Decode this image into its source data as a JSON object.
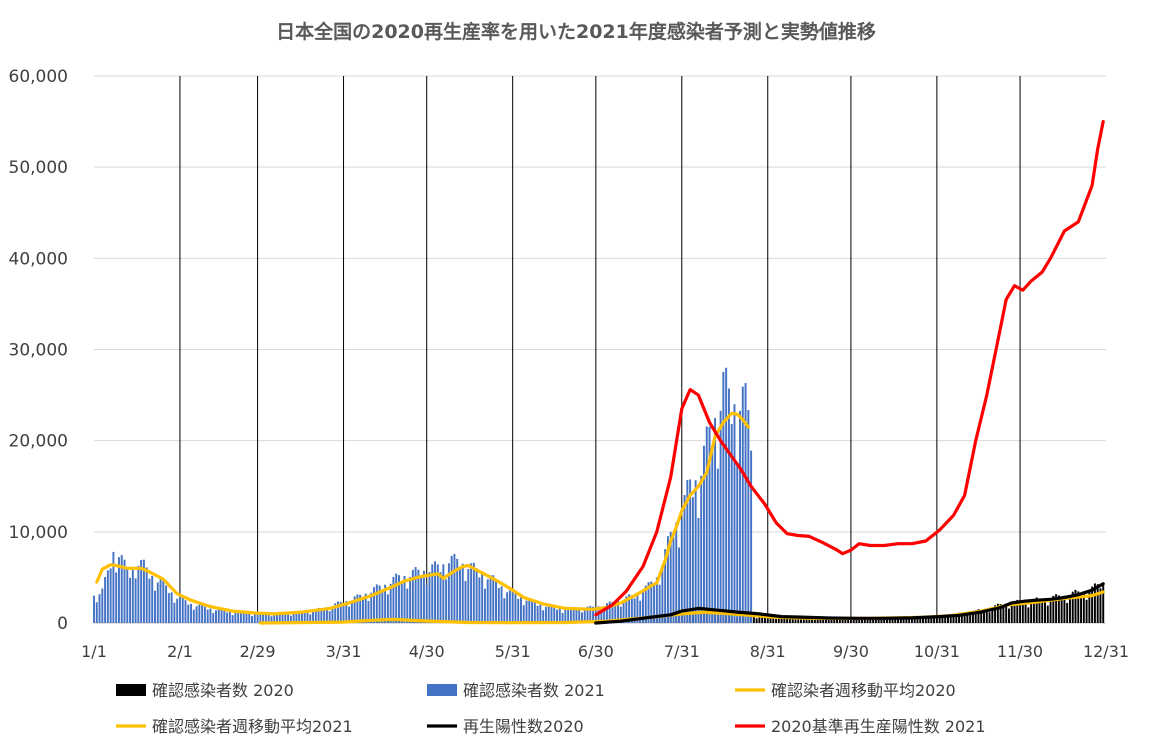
{
  "chart_data": {
    "type": "bar",
    "title": "日本全国の2020再生産率を用いた2021年度感染者予測と実勢値推移",
    "xlabel": "",
    "ylabel": "",
    "ylim": [
      0,
      60000
    ],
    "y_ticks": [
      0,
      10000,
      20000,
      30000,
      40000,
      50000,
      60000
    ],
    "y_tick_labels": [
      "0",
      "10,000",
      "20,000",
      "30,000",
      "40,000",
      "50,000",
      "60,000"
    ],
    "x_range_days": [
      0,
      364
    ],
    "x_ticks": [
      {
        "label": "1/1",
        "day": 0
      },
      {
        "label": "2/1",
        "day": 31
      },
      {
        "label": "2/29",
        "day": 59
      },
      {
        "label": "3/31",
        "day": 90
      },
      {
        "label": "4/30",
        "day": 120
      },
      {
        "label": "5/31",
        "day": 151
      },
      {
        "label": "6/30",
        "day": 181
      },
      {
        "label": "7/31",
        "day": 212
      },
      {
        "label": "8/31",
        "day": 243
      },
      {
        "label": "9/30",
        "day": 273
      },
      {
        "label": "10/31",
        "day": 304
      },
      {
        "label": "11/30",
        "day": 334
      },
      {
        "label": "12/31",
        "day": 365
      }
    ],
    "grid": {
      "vertical": true,
      "horizontal": true
    },
    "legend_position": "bottom",
    "series": [
      {
        "name": "確認感染者数 2020",
        "kind": "bar",
        "color": "#000000",
        "points": [
          [
            60,
            0
          ],
          [
            70,
            20
          ],
          [
            80,
            50
          ],
          [
            90,
            150
          ],
          [
            100,
            350
          ],
          [
            105,
            450
          ],
          [
            110,
            400
          ],
          [
            120,
            250
          ],
          [
            130,
            120
          ],
          [
            140,
            50
          ],
          [
            150,
            30
          ],
          [
            160,
            40
          ],
          [
            170,
            60
          ],
          [
            180,
            150
          ],
          [
            190,
            300
          ],
          [
            200,
            600
          ],
          [
            210,
            900
          ],
          [
            215,
            1200
          ],
          [
            220,
            1300
          ],
          [
            225,
            1200
          ],
          [
            230,
            1000
          ],
          [
            240,
            700
          ],
          [
            250,
            550
          ],
          [
            260,
            480
          ],
          [
            270,
            500
          ],
          [
            280,
            520
          ],
          [
            290,
            560
          ],
          [
            300,
            650
          ],
          [
            310,
            900
          ],
          [
            320,
            1400
          ],
          [
            330,
            2200
          ],
          [
            335,
            2300
          ],
          [
            340,
            2500
          ],
          [
            345,
            2700
          ],
          [
            350,
            3000
          ],
          [
            355,
            3300
          ],
          [
            360,
            3700
          ],
          [
            364,
            4400
          ]
        ]
      },
      {
        "name": "確認感染者数 2021",
        "kind": "bar",
        "color": "#4472C4",
        "points": [
          [
            0,
            3000
          ],
          [
            3,
            3500
          ],
          [
            5,
            5500
          ],
          [
            7,
            7800
          ],
          [
            9,
            7600
          ],
          [
            11,
            6200
          ],
          [
            13,
            5500
          ],
          [
            15,
            6800
          ],
          [
            18,
            6200
          ],
          [
            20,
            5400
          ],
          [
            25,
            4200
          ],
          [
            30,
            2800
          ],
          [
            35,
            2100
          ],
          [
            40,
            1700
          ],
          [
            45,
            1400
          ],
          [
            50,
            1200
          ],
          [
            55,
            1100
          ],
          [
            60,
            1000
          ],
          [
            65,
            1050
          ],
          [
            70,
            1100
          ],
          [
            75,
            1200
          ],
          [
            80,
            1400
          ],
          [
            85,
            1800
          ],
          [
            90,
            2300
          ],
          [
            95,
            2800
          ],
          [
            100,
            3500
          ],
          [
            105,
            4200
          ],
          [
            110,
            5000
          ],
          [
            115,
            5400
          ],
          [
            120,
            5800
          ],
          [
            125,
            6200
          ],
          [
            128,
            6900
          ],
          [
            131,
            6700
          ],
          [
            134,
            6400
          ],
          [
            137,
            5900
          ],
          [
            140,
            5400
          ],
          [
            145,
            4500
          ],
          [
            150,
            3300
          ],
          [
            155,
            2700
          ],
          [
            160,
            2100
          ],
          [
            165,
            1700
          ],
          [
            170,
            1500
          ],
          [
            175,
            1600
          ],
          [
            180,
            1700
          ],
          [
            185,
            2000
          ],
          [
            190,
            2500
          ],
          [
            195,
            3000
          ],
          [
            200,
            4000
          ],
          [
            203,
            5000
          ],
          [
            206,
            7500
          ],
          [
            209,
            10500
          ],
          [
            212,
            12000
          ],
          [
            215,
            15000
          ],
          [
            218,
            16000
          ],
          [
            220,
            18000
          ],
          [
            222,
            20500
          ],
          [
            225,
            23500
          ],
          [
            227,
            25500
          ],
          [
            229,
            24500
          ],
          [
            231,
            24000
          ],
          [
            233,
            24500
          ],
          [
            235,
            23500
          ],
          [
            237,
            21000
          ],
          [
            238,
            0
          ]
        ]
      },
      {
        "name": "確認染者週移動平均2020",
        "kind": "line",
        "color": "#FFC000",
        "points": [
          [
            60,
            0
          ],
          [
            90,
            100
          ],
          [
            100,
            300
          ],
          [
            108,
            400
          ],
          [
            120,
            220
          ],
          [
            135,
            60
          ],
          [
            150,
            30
          ],
          [
            170,
            60
          ],
          [
            185,
            200
          ],
          [
            200,
            600
          ],
          [
            212,
            1000
          ],
          [
            220,
            1200
          ],
          [
            230,
            1000
          ],
          [
            245,
            650
          ],
          [
            260,
            500
          ],
          [
            280,
            520
          ],
          [
            300,
            640
          ],
          [
            310,
            850
          ],
          [
            320,
            1300
          ],
          [
            330,
            2000
          ],
          [
            340,
            2300
          ],
          [
            350,
            2700
          ],
          [
            360,
            3000
          ],
          [
            364,
            3400
          ]
        ]
      },
      {
        "name": "確認感染者週移動平均2021",
        "kind": "line",
        "color": "#FFC000",
        "points": [
          [
            1,
            4500
          ],
          [
            3,
            5900
          ],
          [
            6,
            6400
          ],
          [
            8,
            6300
          ],
          [
            12,
            6000
          ],
          [
            17,
            6000
          ],
          [
            20,
            5600
          ],
          [
            25,
            4800
          ],
          [
            30,
            3200
          ],
          [
            35,
            2500
          ],
          [
            42,
            1800
          ],
          [
            50,
            1300
          ],
          [
            58,
            1100
          ],
          [
            65,
            1000
          ],
          [
            75,
            1200
          ],
          [
            85,
            1600
          ],
          [
            92,
            2200
          ],
          [
            100,
            3000
          ],
          [
            107,
            3900
          ],
          [
            112,
            4600
          ],
          [
            118,
            5100
          ],
          [
            124,
            5400
          ],
          [
            126,
            4900
          ],
          [
            130,
            5700
          ],
          [
            133,
            6200
          ],
          [
            135,
            6300
          ],
          [
            140,
            5500
          ],
          [
            145,
            4700
          ],
          [
            150,
            3800
          ],
          [
            155,
            2800
          ],
          [
            162,
            2100
          ],
          [
            170,
            1600
          ],
          [
            180,
            1500
          ],
          [
            185,
            1700
          ],
          [
            190,
            2200
          ],
          [
            195,
            3000
          ],
          [
            199,
            3700
          ],
          [
            201,
            4100
          ],
          [
            203,
            4400
          ],
          [
            206,
            6900
          ],
          [
            208,
            9000
          ],
          [
            210,
            10500
          ],
          [
            212,
            12300
          ],
          [
            215,
            14000
          ],
          [
            218,
            15000
          ],
          [
            221,
            16500
          ],
          [
            224,
            20500
          ],
          [
            227,
            22000
          ],
          [
            230,
            23000
          ],
          [
            232,
            22900
          ],
          [
            234,
            22300
          ],
          [
            236,
            21500
          ]
        ]
      },
      {
        "name": "再生陽性数2020",
        "kind": "line",
        "color": "#000000",
        "points": [
          [
            181,
            0
          ],
          [
            190,
            200
          ],
          [
            200,
            600
          ],
          [
            208,
            900
          ],
          [
            212,
            1300
          ],
          [
            218,
            1600
          ],
          [
            225,
            1400
          ],
          [
            232,
            1200
          ],
          [
            240,
            1000
          ],
          [
            248,
            700
          ],
          [
            255,
            650
          ],
          [
            265,
            550
          ],
          [
            275,
            520
          ],
          [
            285,
            520
          ],
          [
            295,
            560
          ],
          [
            305,
            700
          ],
          [
            312,
            850
          ],
          [
            320,
            1200
          ],
          [
            327,
            1700
          ],
          [
            331,
            2200
          ],
          [
            336,
            2400
          ],
          [
            340,
            2500
          ],
          [
            345,
            2600
          ],
          [
            350,
            2800
          ],
          [
            355,
            3100
          ],
          [
            360,
            3600
          ],
          [
            364,
            4300
          ]
        ]
      },
      {
        "name": "2020基準再生産陽性数 2021",
        "kind": "line",
        "color": "#FF0000",
        "points": [
          [
            181,
            900
          ],
          [
            187,
            2000
          ],
          [
            192,
            3500
          ],
          [
            198,
            6200
          ],
          [
            203,
            10000
          ],
          [
            208,
            16000
          ],
          [
            212,
            23500
          ],
          [
            215,
            25600
          ],
          [
            218,
            25000
          ],
          [
            222,
            22000
          ],
          [
            226,
            20000
          ],
          [
            229,
            18700
          ],
          [
            233,
            17000
          ],
          [
            237,
            15000
          ],
          [
            242,
            13000
          ],
          [
            246,
            11000
          ],
          [
            250,
            9800
          ],
          [
            254,
            9600
          ],
          [
            258,
            9500
          ],
          [
            263,
            8800
          ],
          [
            268,
            8000
          ],
          [
            270,
            7600
          ],
          [
            273,
            8000
          ],
          [
            276,
            8700
          ],
          [
            280,
            8500
          ],
          [
            285,
            8500
          ],
          [
            290,
            8700
          ],
          [
            295,
            8700
          ],
          [
            300,
            9000
          ],
          [
            305,
            10200
          ],
          [
            310,
            11800
          ],
          [
            314,
            14000
          ],
          [
            318,
            20000
          ],
          [
            322,
            25000
          ],
          [
            326,
            31000
          ],
          [
            329,
            35500
          ],
          [
            332,
            37000
          ],
          [
            335,
            36500
          ],
          [
            338,
            37500
          ],
          [
            342,
            38500
          ],
          [
            345,
            40000
          ],
          [
            350,
            43000
          ],
          [
            355,
            44000
          ],
          [
            360,
            48000
          ],
          [
            362,
            52000
          ],
          [
            364,
            55000
          ]
        ]
      }
    ]
  }
}
